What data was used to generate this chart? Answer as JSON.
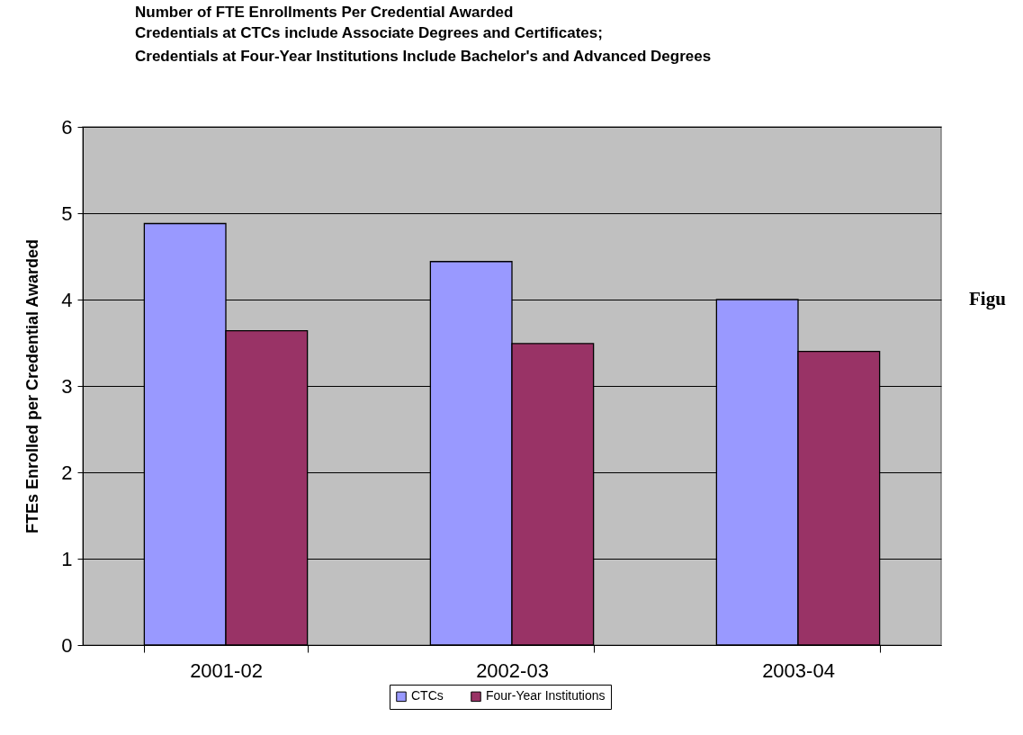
{
  "chart_data": {
    "type": "bar",
    "title": "Number of FTE Enrollments Per Credential Awarded",
    "subtitle": "Credentials at CTCs include Associate Degrees and Certificates;\nCredentials at Four-Year Institutions Include Bachelor's and Advanced Degrees",
    "ylabel": "FTEs Enrolled per Credential Awarded",
    "categories": [
      "2001-02",
      "2002-03",
      "2003-04"
    ],
    "series": [
      {
        "name": "CTCs",
        "color": "#9999ff",
        "values": [
          4.88,
          4.44,
          4.0
        ]
      },
      {
        "name": "Four-Year Institutions",
        "color": "#993366",
        "values": [
          3.64,
          3.49,
          3.4
        ]
      }
    ],
    "ylim": [
      0,
      6
    ],
    "yticks": [
      0,
      1,
      2,
      3,
      4,
      5,
      6
    ],
    "grid": "y",
    "legend": "bottom",
    "annotations": [
      "Figu"
    ]
  }
}
